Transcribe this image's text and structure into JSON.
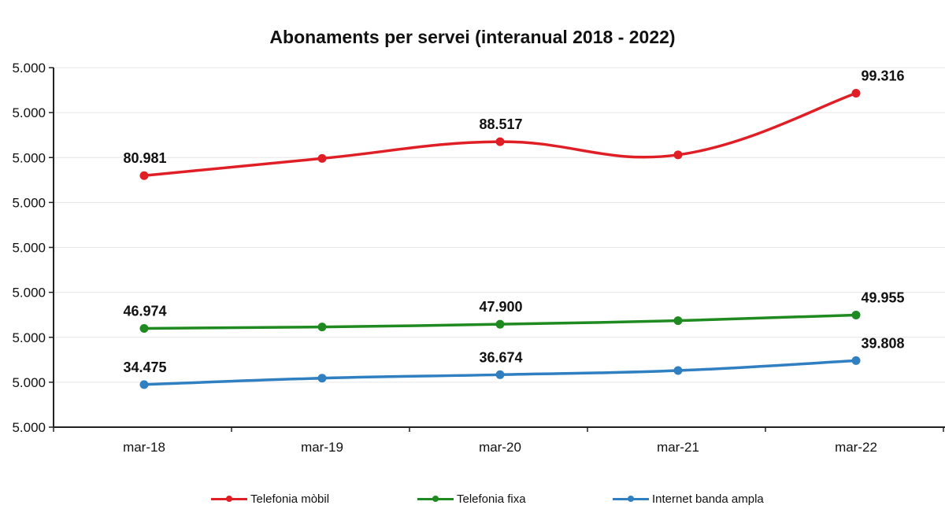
{
  "chart_data": {
    "type": "line",
    "title": "Abonaments per servei (interanual 2018 - 2022)",
    "xlabel": "",
    "ylabel": "",
    "categories": [
      "mar-18",
      "mar-19",
      "mar-20",
      "mar-21",
      "mar-22"
    ],
    "y_tick_labels": [
      "5.000",
      "5.000",
      "5.000",
      "5.000",
      "5.000",
      "5.000",
      "5.000",
      "5.000",
      "5.000"
    ],
    "ylim": [
      25000,
      105000
    ],
    "grid": true,
    "legend_position": "bottom",
    "series": [
      {
        "name": "Telefonia mòbil",
        "color": "#e01e25",
        "values": [
          80981,
          84800,
          88517,
          85600,
          99316
        ],
        "labels": [
          "80.981",
          "",
          "88.517",
          "",
          "99.316"
        ]
      },
      {
        "name": "Telefonia fixa",
        "color": "#1f8a1f",
        "values": [
          46974,
          47300,
          47900,
          48700,
          49955
        ],
        "labels": [
          "46.974",
          "",
          "47.900",
          "",
          "49.955"
        ]
      },
      {
        "name": "Internet banda ampla",
        "color": "#2f7fc1",
        "values": [
          34475,
          35900,
          36674,
          37600,
          39808
        ],
        "labels": [
          "34.475",
          "",
          "36.674",
          "",
          "39.808"
        ]
      }
    ]
  }
}
